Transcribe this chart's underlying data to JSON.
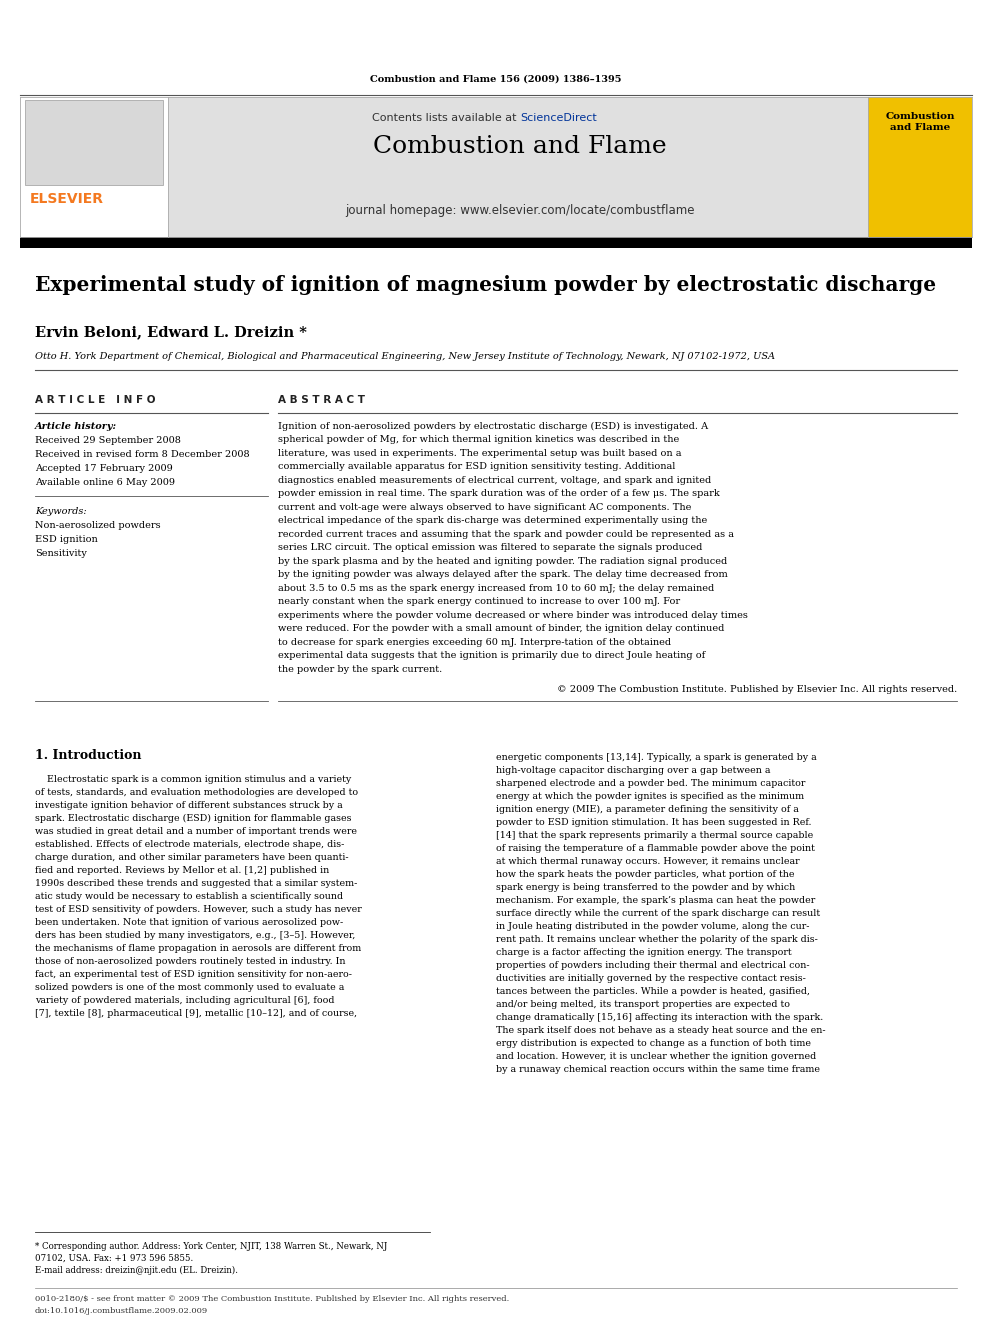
{
  "page_width": 9.92,
  "page_height": 13.23,
  "bg_color": "#ffffff",
  "journal_citation": "Combustion and Flame 156 (2009) 1386–1395",
  "header_bg": "#e0e0e0",
  "header_journal_name": "Combustion and Flame",
  "header_url": "journal homepage: www.elsevier.com/locate/combustflame",
  "elsevier_color": "#f47920",
  "black_bar_color": "#000000",
  "article_title": "Experimental study of ignition of magnesium powder by electrostatic discharge",
  "authors": "Ervin Beloni, Edward L. Dreizin *",
  "affiliation": "Otto H. York Department of Chemical, Biological and Pharmaceutical Engineering, New Jersey Institute of Technology, Newark, NJ 07102-1972, USA",
  "article_info_header": "A R T I C L E   I N F O",
  "abstract_header": "A B S T R A C T",
  "article_history_label": "Article history:",
  "received": "Received 29 September 2008",
  "received_revised": "Received in revised form 8 December 2008",
  "accepted": "Accepted 17 February 2009",
  "available": "Available online 6 May 2009",
  "keywords_label": "Keywords:",
  "keyword1": "Non-aerosolized powders",
  "keyword2": "ESD ignition",
  "keyword3": "Sensitivity",
  "abstract_text": "Ignition of non-aerosolized powders by electrostatic discharge (ESD) is investigated. A spherical powder of Mg, for which thermal ignition kinetics was described in the literature, was used in experiments. The experimental setup was built based on a commercially available apparatus for ESD ignition sensitivity testing. Additional diagnostics enabled measurements of electrical current, voltage, and spark and ignited powder emission in real time. The spark duration was of the order of a few μs. The spark current and volt-age were always observed to have significant AC components. The electrical impedance of the spark dis-charge was determined experimentally using the recorded current traces and assuming that the spark and powder could be represented as a series LRC circuit. The optical emission was filtered to separate the signals produced by the spark plasma and by the heated and igniting powder. The radiation signal produced by the igniting powder was always delayed after the spark. The delay time decreased from about 3.5 to 0.5 ms as the spark energy increased from 10 to 60 mJ; the delay remained nearly constant when the spark energy continued to increase to over 100 mJ. For experiments where the powder volume decreased or where binder was introduced delay times were reduced. For the powder with a small amount of binder, the ignition delay continued to decrease for spark energies exceeding 60 mJ. Interpre-tation of the obtained experimental data suggests that the ignition is primarily due to direct Joule heating of the powder by the spark current.",
  "copyright_text": "© 2009 The Combustion Institute. Published by Elsevier Inc. All rights reserved.",
  "section1_title": "1. Introduction",
  "intro_left": [
    "    Electrostatic spark is a common ignition stimulus and a variety",
    "of tests, standards, and evaluation methodologies are developed to",
    "investigate ignition behavior of different substances struck by a",
    "spark. Electrostatic discharge (ESD) ignition for flammable gases",
    "was studied in great detail and a number of important trends were",
    "established. Effects of electrode materials, electrode shape, dis-",
    "charge duration, and other similar parameters have been quanti-",
    "fied and reported. Reviews by Mellor et al. [1,2] published in",
    "1990s described these trends and suggested that a similar system-",
    "atic study would be necessary to establish a scientifically sound",
    "test of ESD sensitivity of powders. However, such a study has never",
    "been undertaken. Note that ignition of various aerosolized pow-",
    "ders has been studied by many investigators, e.g., [3–5]. However,",
    "the mechanisms of flame propagation in aerosols are different from",
    "those of non-aerosolized powders routinely tested in industry. In",
    "fact, an experimental test of ESD ignition sensitivity for non-aero-",
    "solized powders is one of the most commonly used to evaluate a",
    "variety of powdered materials, including agricultural [6], food",
    "[7], textile [8], pharmaceutical [9], metallic [10–12], and of course,"
  ],
  "intro_right": [
    "energetic components [13,14]. Typically, a spark is generated by a",
    "high-voltage capacitor discharging over a gap between a",
    "sharpened electrode and a powder bed. The minimum capacitor",
    "energy at which the powder ignites is specified as the minimum",
    "ignition energy (MIE), a parameter defining the sensitivity of a",
    "powder to ESD ignition stimulation. It has been suggested in Ref.",
    "[14] that the spark represents primarily a thermal source capable",
    "of raising the temperature of a flammable powder above the point",
    "at which thermal runaway occurs. However, it remains unclear",
    "how the spark heats the powder particles, what portion of the",
    "spark energy is being transferred to the powder and by which",
    "mechanism. For example, the spark’s plasma can heat the powder",
    "surface directly while the current of the spark discharge can result",
    "in Joule heating distributed in the powder volume, along the cur-",
    "rent path. It remains unclear whether the polarity of the spark dis-",
    "charge is a factor affecting the ignition energy. The transport",
    "properties of powders including their thermal and electrical con-",
    "ductivities are initially governed by the respective contact resis-",
    "tances between the particles. While a powder is heated, gasified,",
    "and/or being melted, its transport properties are expected to",
    "change dramatically [15,16] affecting its interaction with the spark.",
    "The spark itself does not behave as a steady heat source and the en-",
    "ergy distribution is expected to change as a function of both time",
    "and location. However, it is unclear whether the ignition governed",
    "by a runaway chemical reaction occurs within the same time frame"
  ],
  "footnote1": "* Corresponding author. Address: York Center, NJIT, 138 Warren St., Newark, NJ",
  "footnote1b": "07102, USA. Fax: +1 973 596 5855.",
  "footnote2": "E-mail address: dreizin@njit.edu (EL. Dreizin).",
  "footer1": "0010-2180/$ - see front matter © 2009 The Combustion Institute. Published by Elsevier Inc. All rights reserved.",
  "footer2": "doi:10.1016/j.combustflame.2009.02.009"
}
